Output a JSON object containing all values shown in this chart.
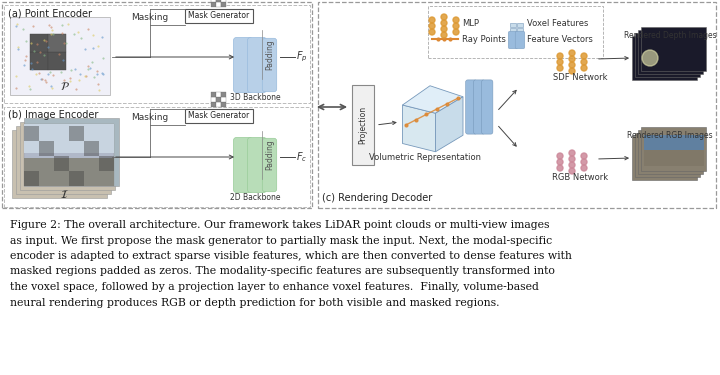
{
  "fig_width": 7.2,
  "fig_height": 3.75,
  "dpi": 100,
  "bg_color": "#ffffff",
  "caption_lines": [
    "Figure 2: The overall architecture. Our framework takes LiDAR point clouds or multi-view images",
    "as input. We first propose the mask generator to partially mask the input. Next, the modal-specific",
    "encoder is adapted to extract sparse visible features, which are then converted to dense features with",
    "masked regions padded as zeros. The modality-specific features are subsequently transformed into",
    "the voxel space, followed by a projection layer to enhance voxel features.  Finally, volume-based",
    "neural rendering produces RGB or depth prediction for both visible and masked regions."
  ],
  "caption_fontsize": 7.8
}
